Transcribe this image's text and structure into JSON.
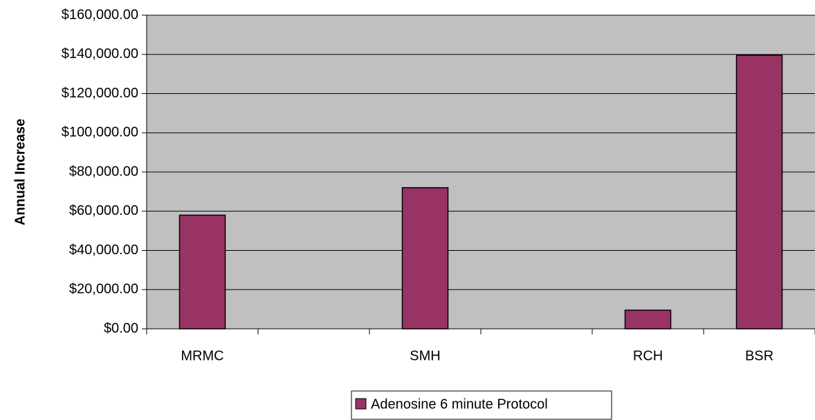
{
  "chart_data": {
    "type": "bar",
    "title": "",
    "xlabel": "",
    "ylabel": "Annual Increase",
    "categories": [
      "MRMC",
      "",
      "SMH",
      "",
      "RCH",
      "BSR"
    ],
    "series": [
      {
        "name": "Adenosine 6 minute Protocol",
        "values": [
          58000,
          0,
          72000,
          0,
          9500,
          139500
        ]
      }
    ],
    "ylim": [
      0,
      160000
    ],
    "yticks": [
      0,
      20000,
      40000,
      60000,
      80000,
      100000,
      120000,
      140000,
      160000
    ],
    "ytick_labels": [
      "$0.00",
      "$20,000.00",
      "$40,000.00",
      "$60,000.00",
      "$80,000.00",
      "$100,000.00",
      "$120,000.00",
      "$140,000.00",
      "$160,000.00"
    ],
    "grid": true,
    "legend": "bottom",
    "colors": {
      "bar": "#993366",
      "plot_background": "#c0c0c0",
      "grid": "#000000"
    }
  }
}
